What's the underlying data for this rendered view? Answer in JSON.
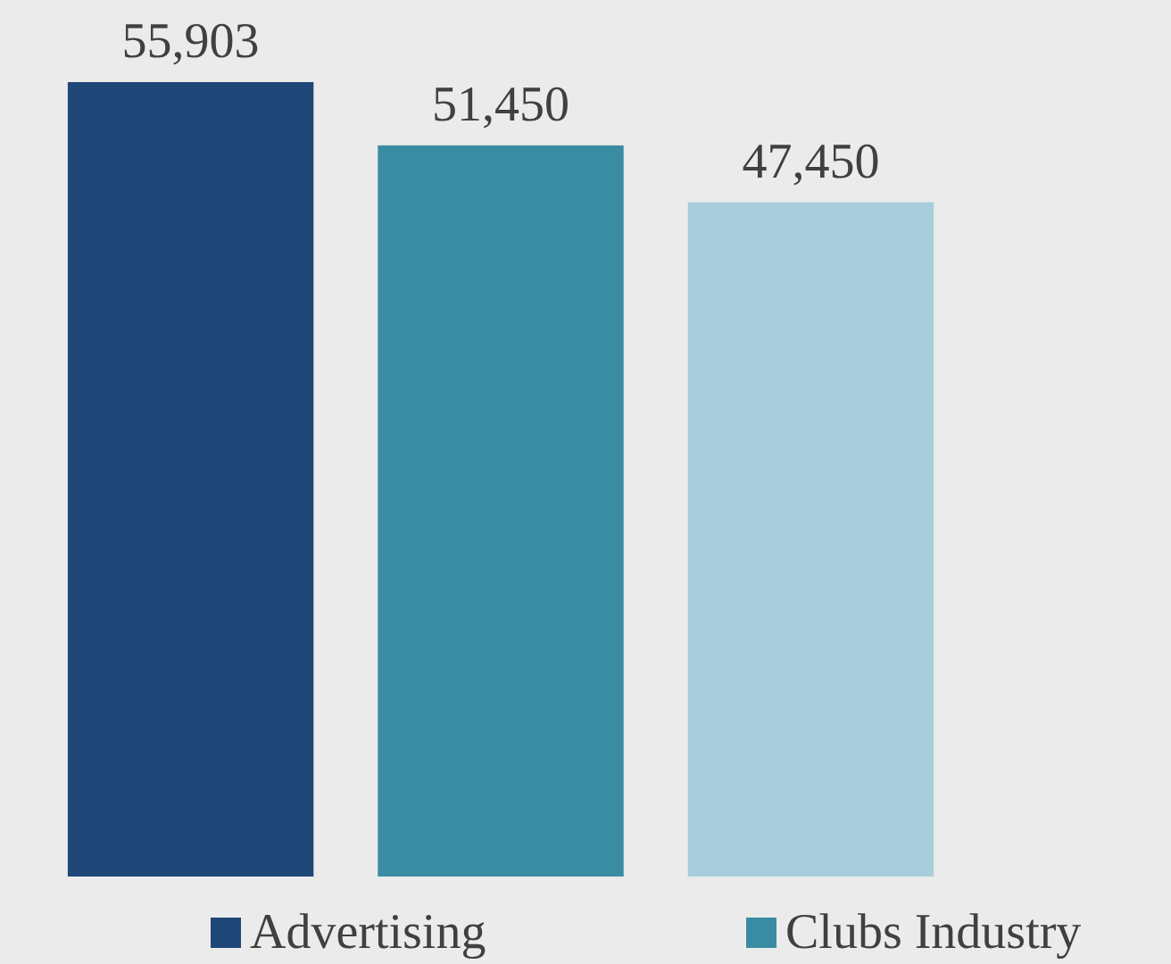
{
  "chart_data": {
    "type": "bar",
    "categories": [
      null
    ],
    "series": [
      {
        "name": "Advertising",
        "color": "#1f4778",
        "values": [
          55903
        ],
        "value_labels": [
          "55,903"
        ]
      },
      {
        "name": "Clubs Industry",
        "color": "#3a8ca3",
        "values": [
          51450
        ],
        "value_labels": [
          "51,450"
        ]
      },
      {
        "color": "#a8cedc",
        "values": [
          47450
        ],
        "value_labels": [
          "47,450"
        ]
      }
    ],
    "legend": "bottom"
  }
}
